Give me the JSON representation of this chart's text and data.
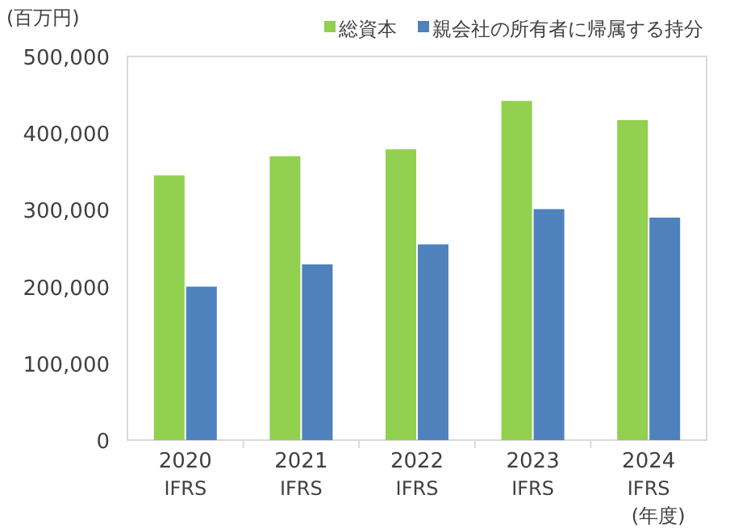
{
  "chart_data": {
    "type": "bar",
    "ylabel": "(百万円)",
    "xlabel": "(年度)",
    "categories": [
      "2020\nIFRS",
      "2021\nIFRS",
      "2022\nIFRS",
      "2023\nIFRS",
      "2024\nIFRS"
    ],
    "series": [
      {
        "name": "総資本",
        "color": "#92d050",
        "values": [
          345000,
          370000,
          379000,
          442000,
          417000
        ]
      },
      {
        "name": "親会社の所有者に帰属する持分",
        "color": "#4f81bd",
        "values": [
          200000,
          229000,
          255000,
          301000,
          290000
        ]
      }
    ],
    "ylim": [
      0,
      500000
    ],
    "yticks": [
      {
        "value": 0,
        "label": "0"
      },
      {
        "value": 100000,
        "label": "100,000"
      },
      {
        "value": 200000,
        "label": "200,000"
      },
      {
        "value": 300000,
        "label": "300,000"
      },
      {
        "value": 400000,
        "label": "400,000"
      },
      {
        "value": 500000,
        "label": "500,000"
      }
    ],
    "grid": false,
    "legend": "top right"
  }
}
